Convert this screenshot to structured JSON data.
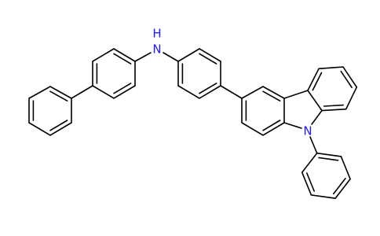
{
  "atoms": [
    {
      "label": "H"
    },
    {
      "label": "N"
    },
    {
      "label": "N"
    }
  ]
}
